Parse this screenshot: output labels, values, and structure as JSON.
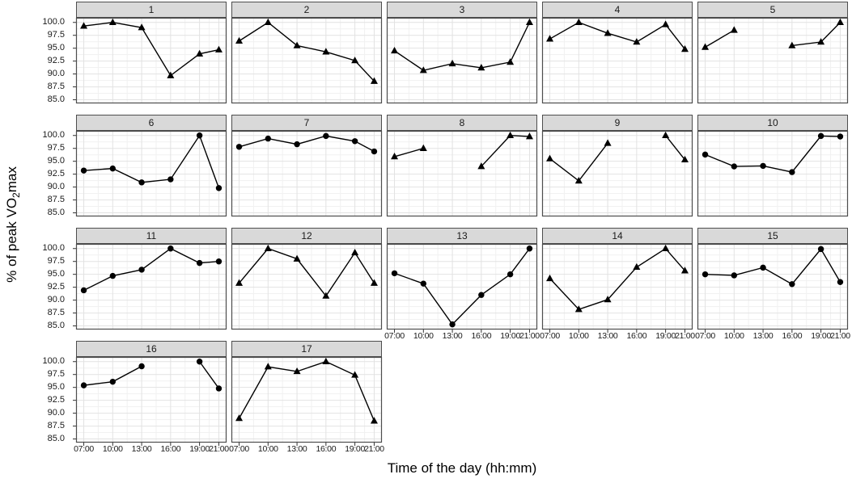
{
  "figure": {
    "x_title": "Time of the day (hh:mm)",
    "y_title_parts": {
      "pre": "% of peak VO",
      "sub": "2",
      "post": "max"
    }
  },
  "colors": {
    "background": "#ffffff",
    "strip_bg": "#d9d9d9",
    "strip_border": "#4d4d4d",
    "panel_border": "#4d4d4d",
    "grid_major": "#e2e2e2",
    "grid_minor": "#f1f1f1",
    "line": "#000000",
    "marker": "#000000",
    "text": "#1a1a1a"
  },
  "chart_data": {
    "type": "line",
    "title": "",
    "xlabel": "Time of the day (hh:mm)",
    "ylabel": "% of peak VO2max",
    "legend": "none",
    "grid": "major+minor",
    "x_hours": [
      7,
      10,
      13,
      16,
      19,
      21
    ],
    "x_tick_labels": [
      "07:00",
      "10:00",
      "13:00",
      "16:00",
      "19:00",
      "21:00"
    ],
    "y_ticks": [
      85.0,
      87.5,
      90.0,
      92.5,
      95.0,
      97.5,
      100.0
    ],
    "y_tick_labels": [
      "85.0",
      "87.5",
      "90.0",
      "92.5",
      "95.0",
      "97.5",
      "100.0"
    ],
    "xlim": [
      6.2,
      21.8
    ],
    "ylim": [
      84.3,
      100.9
    ],
    "columns": 5,
    "facets": [
      {
        "label": "1",
        "marker": "triangle",
        "values": [
          99.3,
          100.0,
          99.0,
          89.7,
          93.9,
          94.7
        ]
      },
      {
        "label": "2",
        "marker": "triangle",
        "values": [
          96.4,
          100.0,
          95.5,
          94.3,
          92.6,
          88.6
        ]
      },
      {
        "label": "3",
        "marker": "triangle",
        "values": [
          94.5,
          90.7,
          92.0,
          91.2,
          92.3,
          100.0
        ]
      },
      {
        "label": "4",
        "marker": "triangle",
        "values": [
          96.8,
          100.0,
          97.9,
          96.2,
          99.6,
          94.8
        ]
      },
      {
        "label": "5",
        "marker": "triangle",
        "values": [
          95.2,
          98.5,
          null,
          95.5,
          96.2,
          100.0
        ]
      },
      {
        "label": "6",
        "marker": "circle",
        "values": [
          93.2,
          93.6,
          90.9,
          91.5,
          100.0,
          89.8
        ]
      },
      {
        "label": "7",
        "marker": "circle",
        "values": [
          97.8,
          99.4,
          98.3,
          99.9,
          98.9,
          96.9
        ]
      },
      {
        "label": "8",
        "marker": "triangle",
        "values": [
          95.9,
          97.5,
          null,
          94.0,
          100.0,
          99.8
        ]
      },
      {
        "label": "9",
        "marker": "triangle",
        "values": [
          95.5,
          91.2,
          98.5,
          null,
          100.0,
          95.3
        ]
      },
      {
        "label": "10",
        "marker": "circle",
        "values": [
          96.3,
          94.0,
          94.1,
          92.9,
          99.9,
          99.8
        ]
      },
      {
        "label": "11",
        "marker": "circle",
        "values": [
          91.9,
          94.7,
          95.9,
          100.0,
          97.2,
          97.5
        ]
      },
      {
        "label": "12",
        "marker": "triangle",
        "values": [
          93.3,
          100.0,
          98.0,
          90.8,
          99.2,
          93.3
        ]
      },
      {
        "label": "13",
        "marker": "circle",
        "values": [
          95.2,
          93.2,
          85.3,
          91.0,
          95.0,
          100.0
        ]
      },
      {
        "label": "14",
        "marker": "triangle",
        "values": [
          94.2,
          88.2,
          90.1,
          96.4,
          100.0,
          95.7
        ]
      },
      {
        "label": "15",
        "marker": "circle",
        "values": [
          95.0,
          94.8,
          96.3,
          93.1,
          99.9,
          93.5
        ]
      },
      {
        "label": "16",
        "marker": "circle",
        "values": [
          95.4,
          96.1,
          99.1,
          null,
          100.0,
          94.8
        ]
      },
      {
        "label": "17",
        "marker": "triangle",
        "values": [
          89.0,
          99.0,
          98.1,
          100.0,
          97.4,
          88.5
        ]
      }
    ]
  }
}
